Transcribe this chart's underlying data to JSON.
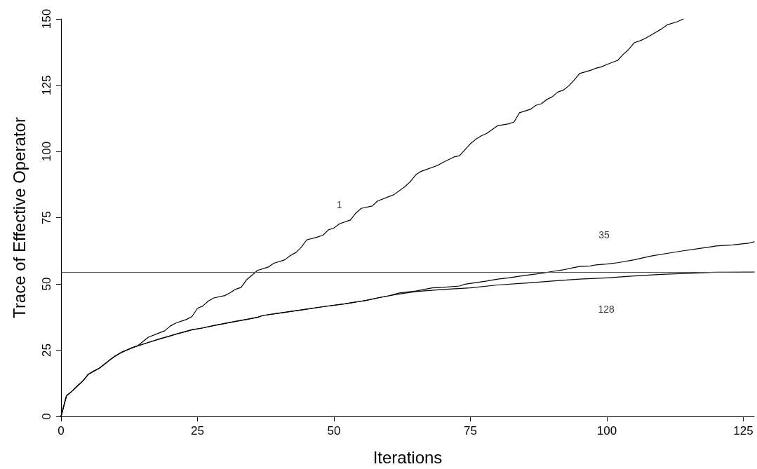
{
  "chart_data": {
    "type": "line",
    "xlabel": "Iterations",
    "ylabel": "Trace of Effective Operator",
    "xlim": [
      0,
      127
    ],
    "xticks": [
      0,
      25,
      50,
      75,
      100,
      125
    ],
    "ylim": [
      0,
      150
    ],
    "yticks": [
      0,
      25,
      50,
      75,
      100,
      125,
      150
    ],
    "grid": false,
    "marker": "none",
    "line_style": "solid",
    "series": [
      {
        "name": "1",
        "color": "#000000",
        "x": [
          0,
          1,
          2,
          3,
          4,
          5,
          6,
          7,
          8,
          9,
          10,
          11,
          12,
          13,
          14,
          16,
          18,
          19,
          20,
          21,
          23,
          24,
          25,
          26,
          27,
          28,
          30,
          31,
          32,
          33,
          34,
          35,
          36,
          38,
          39,
          41,
          42,
          43,
          44,
          45,
          47,
          48,
          49,
          50,
          51,
          53,
          54,
          55,
          57,
          58,
          61,
          63,
          64,
          65,
          66,
          69,
          70,
          72,
          73,
          75,
          76,
          77,
          78,
          80,
          82,
          83,
          84,
          86,
          87,
          88,
          89,
          90,
          91,
          92,
          93,
          94,
          95,
          96,
          97,
          98,
          99,
          100,
          102,
          103,
          104,
          105,
          106,
          107,
          108,
          109,
          110,
          111,
          113,
          114
        ],
        "values": [
          0,
          7.8,
          9.5,
          11.5,
          13.4,
          15.9,
          17.1,
          18.2,
          19.8,
          21.4,
          22.9,
          24.1,
          25.0,
          25.9,
          26.6,
          29.9,
          31.5,
          32.3,
          34.1,
          35.2,
          36.6,
          37.7,
          40.8,
          41.7,
          43.6,
          44.7,
          45.6,
          46.7,
          48.0,
          48.7,
          51.6,
          53.3,
          55.1,
          56.4,
          57.8,
          59.1,
          60.7,
          61.8,
          63.8,
          66.6,
          67.7,
          68.4,
          70.4,
          71.1,
          72.7,
          74.1,
          76.7,
          78.5,
          79.4,
          81.3,
          83.7,
          86.7,
          88.6,
          91.2,
          92.5,
          94.7,
          95.9,
          97.9,
          98.4,
          102.9,
          104.6,
          105.9,
          106.8,
          109.7,
          110.4,
          111.1,
          114.6,
          115.9,
          117.4,
          118.0,
          119.6,
          120.6,
          122.4,
          123.1,
          124.7,
          126.9,
          129.4,
          130.0,
          130.6,
          131.4,
          131.9,
          132.8,
          134.4,
          136.6,
          138.5,
          141.0,
          141.7,
          142.6,
          143.8,
          145.0,
          146.2,
          147.7,
          149.0,
          150
        ]
      },
      {
        "name": "35",
        "color": "#000000",
        "x": [
          0,
          1,
          2,
          3,
          4,
          5,
          6,
          7,
          8,
          9,
          10,
          11,
          12,
          13,
          14,
          16,
          18,
          20,
          22,
          24,
          26,
          28,
          30,
          32,
          34,
          36,
          37,
          40,
          44,
          48,
          52,
          56,
          58,
          60,
          62,
          65,
          68,
          70,
          73,
          74,
          76,
          78,
          80,
          82,
          85,
          88,
          90,
          92,
          94,
          95,
          97,
          98,
          100,
          102,
          105,
          108,
          111,
          114,
          117,
          120,
          123,
          126,
          127
        ],
        "values": [
          0,
          7.8,
          9.5,
          11.5,
          13.4,
          15.9,
          17.1,
          18.2,
          19.8,
          21.4,
          22.9,
          24.1,
          25.0,
          25.9,
          26.6,
          27.9,
          29.2,
          30.4,
          31.6,
          32.7,
          33.4,
          34.3,
          35.1,
          35.9,
          36.6,
          37.4,
          38.1,
          39.0,
          40.2,
          41.4,
          42.5,
          43.8,
          44.7,
          45.5,
          46.6,
          47.3,
          48.5,
          48.7,
          49.2,
          49.9,
          50.5,
          51.1,
          51.8,
          52.3,
          53.2,
          54.0,
          54.7,
          55.3,
          56.2,
          56.6,
          56.8,
          57.2,
          57.5,
          58.0,
          59.1,
          60.5,
          61.5,
          62.5,
          63.4,
          64.3,
          64.7,
          65.4,
          65.9
        ]
      },
      {
        "name": "128",
        "color": "#000000",
        "x": [
          0,
          1,
          2,
          3,
          4,
          5,
          6,
          7,
          8,
          9,
          10,
          11,
          12,
          13,
          14,
          16,
          18,
          20,
          22,
          24,
          26,
          28,
          30,
          32,
          34,
          36,
          37,
          40,
          44,
          48,
          52,
          56,
          58,
          60,
          62,
          65,
          70,
          75,
          80,
          85,
          90,
          95,
          100,
          105,
          110,
          115,
          120,
          127
        ],
        "values": [
          0,
          7.8,
          9.5,
          11.5,
          13.4,
          15.9,
          17.1,
          18.2,
          19.8,
          21.4,
          22.9,
          24.1,
          25.0,
          25.9,
          26.6,
          27.9,
          29.2,
          30.4,
          31.6,
          32.7,
          33.4,
          34.3,
          35.1,
          35.9,
          36.6,
          37.4,
          38.1,
          39.0,
          40.2,
          41.4,
          42.5,
          43.8,
          44.7,
          45.5,
          46.2,
          47.1,
          47.9,
          48.5,
          49.6,
          50.3,
          51.1,
          51.8,
          52.3,
          53.0,
          53.6,
          54.0,
          54.4,
          54.5
        ]
      }
    ],
    "ref_lines": [
      {
        "axis": "y",
        "value": 54.5,
        "color": "#555555",
        "line_style": "solid"
      }
    ]
  }
}
